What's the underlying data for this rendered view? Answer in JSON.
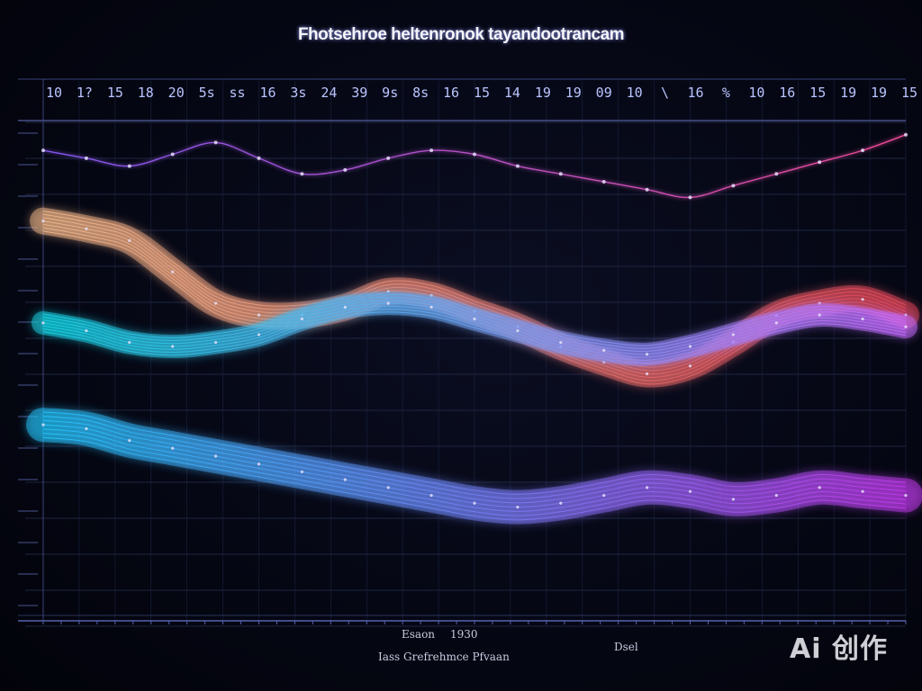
{
  "chart_data": {
    "type": "area",
    "title": "Fhotsehroe heltenronok tayandootrancam",
    "subtitle": "",
    "xlabel": "",
    "ylabel": "",
    "grid": true,
    "legend": "none",
    "top_tick_labels": [
      "10",
      "1?",
      "15",
      "18",
      "20",
      "5s",
      "ss",
      "16",
      "3s",
      "24",
      "39",
      "9s",
      "8s",
      "16",
      "15",
      "14",
      "19",
      "19",
      "09",
      "10",
      "\\",
      "16",
      "%",
      "10",
      "16",
      "15",
      "19",
      "19",
      "15"
    ],
    "footer_labels": [
      "Esaon",
      "1930",
      "Dsel",
      "Iass Grefrehmce Pfvaan"
    ],
    "series": [
      {
        "name": "",
        "color_start": "#f3b98a",
        "color_end": "#e3475a",
        "x": [
          0,
          1,
          2,
          3,
          4,
          5,
          6,
          7,
          8,
          9,
          10,
          11,
          12,
          13,
          14,
          15,
          16,
          17,
          18,
          19,
          20
        ],
        "values": [
          62,
          60,
          57,
          49,
          41,
          38,
          38,
          40,
          44,
          43,
          39,
          35,
          30,
          26,
          23,
          25,
          31,
          38,
          41,
          42,
          38
        ]
      },
      {
        "name": "",
        "color_start": "#18d6e6",
        "color_end": "#c46bff",
        "x": [
          0,
          1,
          2,
          3,
          4,
          5,
          6,
          7,
          8,
          9,
          10,
          11,
          12,
          13,
          14,
          15,
          16,
          17,
          18,
          19,
          20
        ],
        "values": [
          36,
          34,
          31,
          30,
          31,
          33,
          37,
          40,
          41,
          40,
          37,
          34,
          31,
          29,
          28,
          30,
          33,
          36,
          38,
          37,
          35
        ]
      },
      {
        "name": "",
        "color_start": "#25c8ff",
        "color_end": "#c43cf0",
        "x": [
          0,
          1,
          2,
          3,
          4,
          5,
          6,
          7,
          8,
          9,
          10,
          11,
          12,
          13,
          14,
          15,
          16,
          17,
          18,
          19,
          20
        ],
        "values": [
          10,
          9,
          6,
          4,
          2,
          0,
          -2,
          -4,
          -6,
          -8,
          -10,
          -11,
          -10,
          -8,
          -6,
          -7,
          -9,
          -8,
          -6,
          -7,
          -8
        ]
      },
      {
        "name": "",
        "color_start": "#8a5cff",
        "color_end": "#ff4fa0",
        "x": [
          0,
          1,
          2,
          3,
          4,
          5,
          6,
          7,
          8,
          9,
          10,
          11,
          12,
          13,
          14,
          15,
          16,
          17,
          18,
          19,
          20
        ],
        "values": [
          80,
          78,
          76,
          79,
          82,
          78,
          74,
          75,
          78,
          80,
          79,
          76,
          74,
          72,
          70,
          68,
          71,
          74,
          77,
          80,
          84
        ]
      }
    ],
    "xlim": [
      0,
      20
    ],
    "ylim": [
      -40,
      100
    ]
  },
  "watermark": "Ai 创作"
}
